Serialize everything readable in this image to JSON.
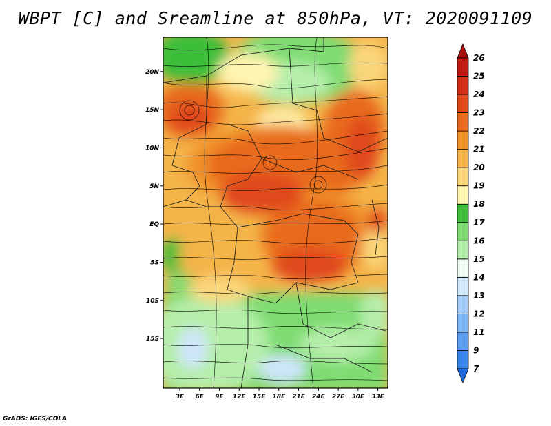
{
  "title": "WBPT [C] and Sreamline at 850hPa, VT: 2020091109",
  "credit": "GrADS: IGES/COLA",
  "chart_data": {
    "type": "heatmap",
    "variable": "WBPT",
    "units": "C",
    "overlay": "streamlines",
    "level": "850hPa",
    "valid_time": "2020091109",
    "lon_range": [
      0.5,
      34.5
    ],
    "lat_range": [
      -21.5,
      24.5
    ],
    "x_ticks": [
      {
        "value": 3,
        "label": "3E"
      },
      {
        "value": 6,
        "label": "6E"
      },
      {
        "value": 9,
        "label": "9E"
      },
      {
        "value": 12,
        "label": "12E"
      },
      {
        "value": 15,
        "label": "15E"
      },
      {
        "value": 18,
        "label": "18E"
      },
      {
        "value": 21,
        "label": "21E"
      },
      {
        "value": 24,
        "label": "24E"
      },
      {
        "value": 27,
        "label": "27E"
      },
      {
        "value": 30,
        "label": "30E"
      },
      {
        "value": 33,
        "label": "33E"
      }
    ],
    "y_ticks": [
      {
        "value": 20,
        "label": "20N"
      },
      {
        "value": 15,
        "label": "15N"
      },
      {
        "value": 10,
        "label": "10N"
      },
      {
        "value": 5,
        "label": "5N"
      },
      {
        "value": 0,
        "label": "EQ"
      },
      {
        "value": -5,
        "label": "5S"
      },
      {
        "value": -10,
        "label": "10S"
      },
      {
        "value": -15,
        "label": "15S"
      }
    ],
    "colorbar": {
      "levels": [
        "7",
        "9",
        "11",
        "12",
        "13",
        "14",
        "15",
        "16",
        "17",
        "18",
        "19",
        "20",
        "21",
        "22",
        "23",
        "24",
        "25",
        "26"
      ],
      "colors": [
        "#1e6be0",
        "#3a86e8",
        "#5c9ef0",
        "#7fb6f5",
        "#a6cdf8",
        "#cfe6fb",
        "#eefaf2",
        "#b5eeaa",
        "#7fdc72",
        "#3ebe3a",
        "#fff4b0",
        "#fad67a",
        "#f4b449",
        "#f0932a",
        "#e86a1e",
        "#e04a1a",
        "#d32f16",
        "#c01a12",
        "#a80f0f"
      ]
    }
  }
}
